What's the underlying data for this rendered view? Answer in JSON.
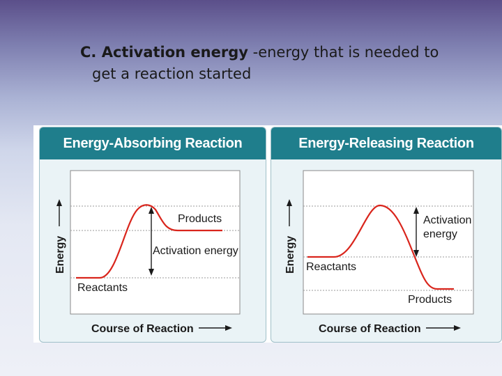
{
  "heading": {
    "term": "C. Activation energy",
    "definition_line1": " -energy that is needed to",
    "definition_line2": "get a reaction started"
  },
  "colors": {
    "header": "#1f7e8c",
    "curve": "#d9251c",
    "panel_bg": "#eaf3f6"
  },
  "chart_data": [
    {
      "type": "line",
      "title": "Energy-Absorbing Reaction",
      "xlabel": "Course of Reaction",
      "ylabel": "Energy",
      "reactants_label": "Reactants",
      "products_label": "Products",
      "activation_label": "Activation energy",
      "energy_levels": {
        "reactants": "low",
        "transition": "high",
        "products": "middle"
      }
    },
    {
      "type": "line",
      "title": "Energy-Releasing Reaction",
      "xlabel": "Course of Reaction",
      "ylabel": "Energy",
      "reactants_label": "Reactants",
      "products_label": "Products",
      "activation_label_line1": "Activation",
      "activation_label_line2": "energy",
      "energy_levels": {
        "reactants": "middle",
        "transition": "high",
        "products": "low"
      }
    }
  ]
}
